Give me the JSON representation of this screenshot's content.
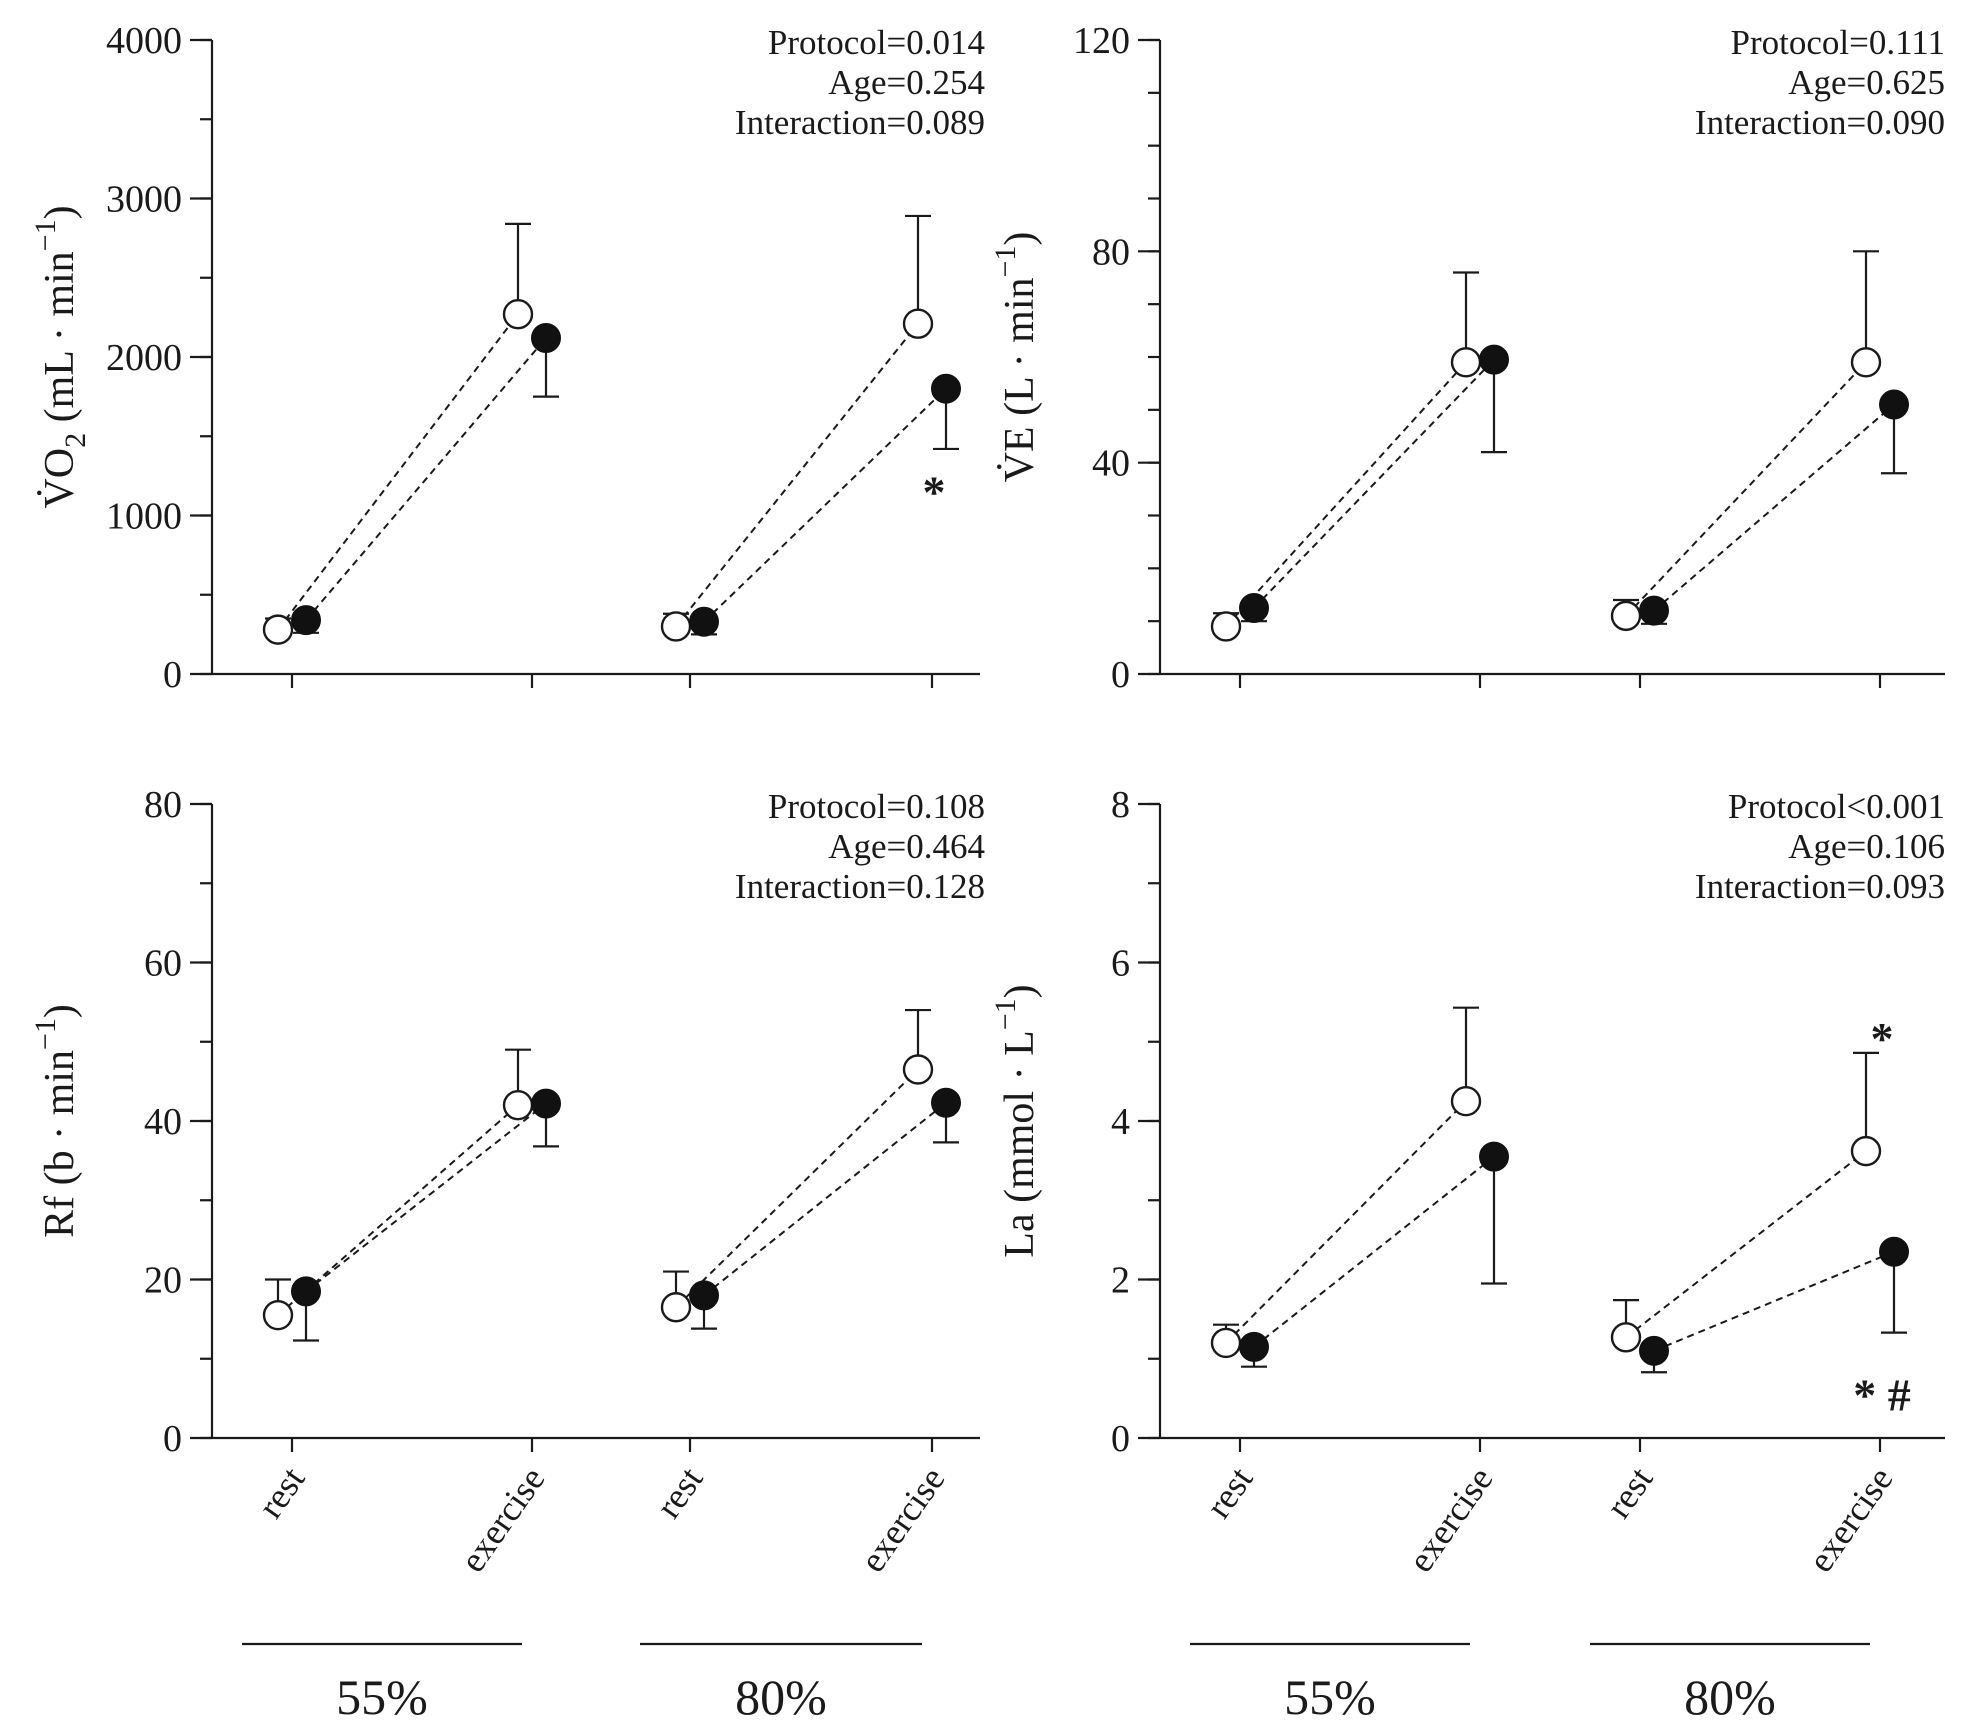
{
  "figure": {
    "x_categories": [
      "rest",
      "exercise",
      "rest",
      "exercise"
    ],
    "groups": [
      "55%",
      "80%"
    ]
  },
  "chart_data": [
    {
      "type": "scatter",
      "panel": "top-left",
      "ylabel_main": "V̇O",
      "ylabel_sub": "2",
      "ylabel_tail": " (mL · min",
      "ylabel_sup": "−1",
      "ylabel_close": ")",
      "ylim": [
        0,
        4000
      ],
      "yticks": [
        0,
        1000,
        2000,
        3000,
        4000
      ],
      "yminor": 500,
      "stats": [
        "Protocol=0.014",
        "Age=0.254",
        "Interaction=0.089"
      ],
      "series": [
        {
          "name": "open",
          "filled": false,
          "values": [
            280,
            2270,
            300,
            2210
          ],
          "err_up": [
            350,
            2840,
            380,
            2890
          ],
          "err_down": [
            null,
            null,
            null,
            null
          ]
        },
        {
          "name": "filled",
          "filled": true,
          "values": [
            340,
            2120,
            330,
            1800
          ],
          "err_up": [
            null,
            null,
            null,
            null
          ],
          "err_down": [
            260,
            1750,
            250,
            1420
          ]
        }
      ],
      "marks": [
        {
          "text": "*",
          "cat": 3,
          "value": 1150
        }
      ]
    },
    {
      "type": "scatter",
      "panel": "top-right",
      "ylabel_main": "V̇E",
      "ylabel_sub": "",
      "ylabel_tail": " (L · min",
      "ylabel_sup": "−1",
      "ylabel_close": ")",
      "ylim": [
        0,
        120
      ],
      "yticks": [
        0,
        40,
        80,
        120
      ],
      "yminor": 10,
      "stats": [
        "Protocol=0.111",
        "Age=0.625",
        "Interaction=0.090"
      ],
      "series": [
        {
          "name": "open",
          "filled": false,
          "values": [
            9,
            59,
            11,
            59
          ],
          "err_up": [
            11.5,
            76,
            14,
            80
          ],
          "err_down": [
            null,
            null,
            null,
            null
          ]
        },
        {
          "name": "filled",
          "filled": true,
          "values": [
            12.5,
            59.5,
            12,
            51
          ],
          "err_up": [
            null,
            null,
            null,
            null
          ],
          "err_down": [
            10,
            42,
            9.5,
            38
          ]
        }
      ],
      "marks": []
    },
    {
      "type": "scatter",
      "panel": "bottom-left",
      "ylabel_main": "Rf (b · min",
      "ylabel_sub": "",
      "ylabel_tail": "",
      "ylabel_sup": "−1",
      "ylabel_close": ")",
      "ylim": [
        0,
        80
      ],
      "yticks": [
        0,
        20,
        40,
        60,
        80
      ],
      "yminor": 10,
      "stats": [
        "Protocol=0.108",
        "Age=0.464",
        "Interaction=0.128"
      ],
      "series": [
        {
          "name": "open",
          "filled": false,
          "values": [
            15.5,
            42,
            16.5,
            46.5
          ],
          "err_up": [
            20,
            49,
            21,
            54
          ],
          "err_down": [
            null,
            null,
            null,
            null
          ]
        },
        {
          "name": "filled",
          "filled": true,
          "values": [
            18.5,
            42.2,
            18,
            42.3
          ],
          "err_up": [
            null,
            null,
            null,
            null
          ],
          "err_down": [
            12.3,
            36.8,
            13.8,
            37.3
          ]
        }
      ],
      "marks": []
    },
    {
      "type": "scatter",
      "panel": "bottom-right",
      "ylabel_main": "La (mmol · L",
      "ylabel_sub": "",
      "ylabel_tail": "",
      "ylabel_sup": "−1",
      "ylabel_close": ")",
      "ylim": [
        0,
        8
      ],
      "yticks": [
        0,
        2,
        4,
        6,
        8
      ],
      "yminor": 1,
      "stats": [
        "Protocol<0.001",
        "Age=0.106",
        "Interaction=0.093"
      ],
      "series": [
        {
          "name": "open",
          "filled": false,
          "values": [
            1.2,
            4.25,
            1.27,
            3.62
          ],
          "err_up": [
            1.43,
            5.43,
            1.74,
            4.86
          ],
          "err_down": [
            null,
            null,
            null,
            null
          ]
        },
        {
          "name": "filled",
          "filled": true,
          "values": [
            1.15,
            3.55,
            1.1,
            2.35
          ],
          "err_up": [
            null,
            null,
            null,
            null
          ],
          "err_down": [
            0.9,
            1.95,
            0.83,
            1.33
          ]
        }
      ],
      "marks": [
        {
          "text": "*",
          "cat": 3,
          "value": 5.05
        },
        {
          "text": "* #",
          "cat": 3,
          "value": 0.55
        }
      ]
    }
  ]
}
